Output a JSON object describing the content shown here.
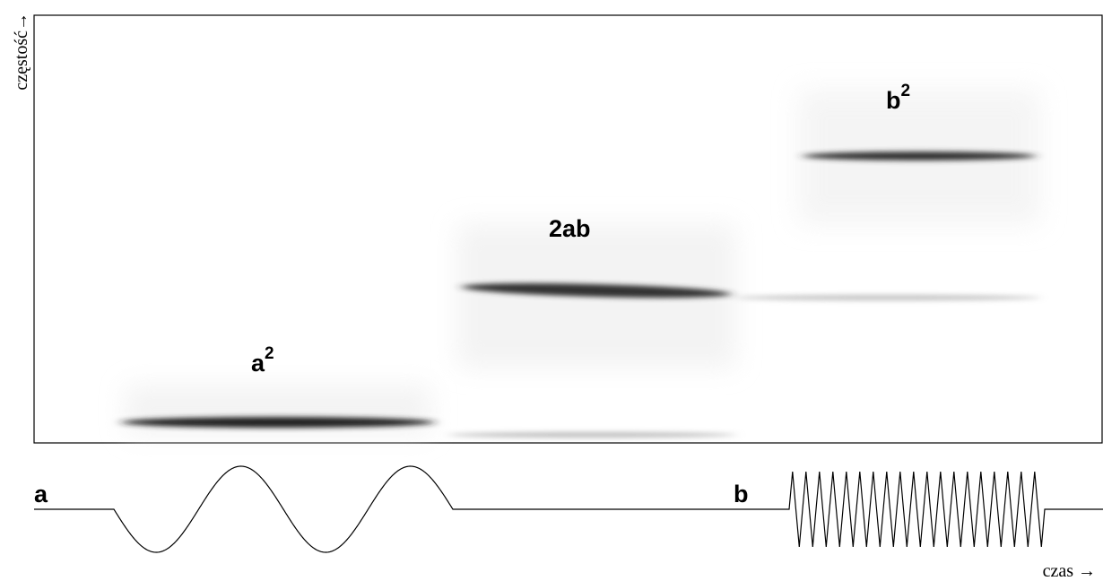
{
  "axes": {
    "y_label": "częstość→",
    "x_label": "czas →"
  },
  "terms": [
    {
      "base": "a",
      "sup": "2"
    },
    {
      "base": "2ab"
    },
    {
      "base": "b",
      "sup": "2"
    }
  ],
  "signals": [
    {
      "label": "a"
    },
    {
      "label": "b"
    }
  ]
}
